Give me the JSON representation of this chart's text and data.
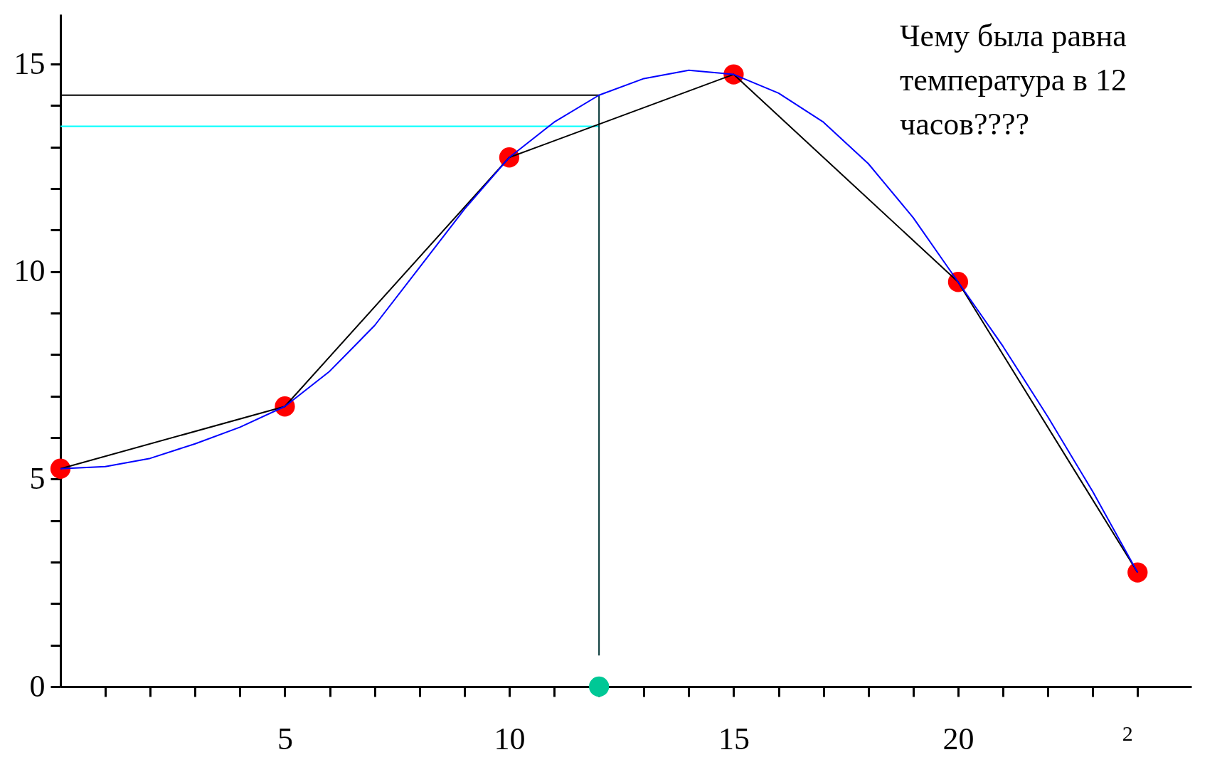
{
  "chart_data": {
    "type": "line",
    "xlim": [
      0,
      25.2
    ],
    "ylim": [
      0,
      16.2
    ],
    "xticks": [
      {
        "value": 1,
        "label": null
      },
      {
        "value": 2,
        "label": null
      },
      {
        "value": 3,
        "label": null
      },
      {
        "value": 4,
        "label": null
      },
      5,
      {
        "value": 6,
        "label": null
      },
      {
        "value": 7,
        "label": null
      },
      {
        "value": 8,
        "label": null
      },
      {
        "value": 9,
        "label": null
      },
      10,
      {
        "value": 11,
        "label": null
      },
      {
        "value": 12,
        "label": null
      },
      {
        "value": 13,
        "label": null
      },
      {
        "value": 14,
        "label": null
      },
      15,
      {
        "value": 16,
        "label": null
      },
      {
        "value": 17,
        "label": null
      },
      {
        "value": 18,
        "label": null
      },
      {
        "value": 19,
        "label": null
      },
      20,
      {
        "value": 21,
        "label": null
      },
      {
        "value": 22,
        "label": null
      },
      {
        "value": 23,
        "label": null
      },
      {
        "value": 24,
        "label": null
      }
    ],
    "yticks": [
      0,
      {
        "value": 1,
        "label": null
      },
      {
        "value": 2,
        "label": null
      },
      {
        "value": 3,
        "label": null
      },
      {
        "value": 4,
        "label": null
      },
      5,
      {
        "value": 6,
        "label": null
      },
      {
        "value": 7,
        "label": null
      },
      {
        "value": 8,
        "label": null
      },
      {
        "value": 9,
        "label": null
      },
      10,
      {
        "value": 11,
        "label": null
      },
      {
        "value": 12,
        "label": null
      },
      {
        "value": 13,
        "label": null
      },
      {
        "value": 14,
        "label": null
      },
      15
    ],
    "grid": false,
    "series": [
      {
        "type": "line",
        "color": "#000000",
        "x": [
          0,
          12
        ],
        "values": [
          14.25,
          14.25
        ]
      },
      {
        "type": "line",
        "color": "#00ffff",
        "x": [
          0,
          12
        ],
        "values": [
          13.5,
          13.5
        ]
      },
      {
        "type": "line",
        "color": "#003333",
        "x": [
          12,
          12
        ],
        "values": [
          0.75,
          14.25
        ]
      },
      {
        "type": "line",
        "color": "#000000",
        "x": [
          0,
          5,
          10,
          15,
          20,
          24
        ],
        "values": [
          5.25,
          6.75,
          12.75,
          14.75,
          9.75,
          2.75
        ]
      },
      {
        "type": "line",
        "color": "#0000ff",
        "x": [
          0,
          1,
          2,
          3,
          4,
          5,
          6,
          7,
          8,
          9,
          10,
          11,
          12,
          13,
          14,
          15,
          16,
          17,
          18,
          19,
          20,
          21,
          22,
          23,
          24
        ],
        "values": [
          5.25,
          5.3,
          5.5,
          5.85,
          6.25,
          6.75,
          7.6,
          8.7,
          10.1,
          11.5,
          12.75,
          13.6,
          14.25,
          14.65,
          14.85,
          14.75,
          14.3,
          13.6,
          12.6,
          11.3,
          9.75,
          8.2,
          6.5,
          4.7,
          2.75
        ]
      },
      {
        "type": "scatter",
        "color": "#ff0000",
        "x": [
          0,
          5,
          10,
          15,
          20,
          24
        ],
        "values": [
          5.25,
          6.75,
          12.75,
          14.75,
          9.75,
          2.75
        ]
      },
      {
        "type": "scatter",
        "color": "#00c896",
        "x": [
          12
        ],
        "values": [
          0
        ]
      }
    ],
    "annotations": [
      "Чему была равна температура в 12 часов????",
      {
        "text": "2",
        "x": 24
      }
    ]
  }
}
